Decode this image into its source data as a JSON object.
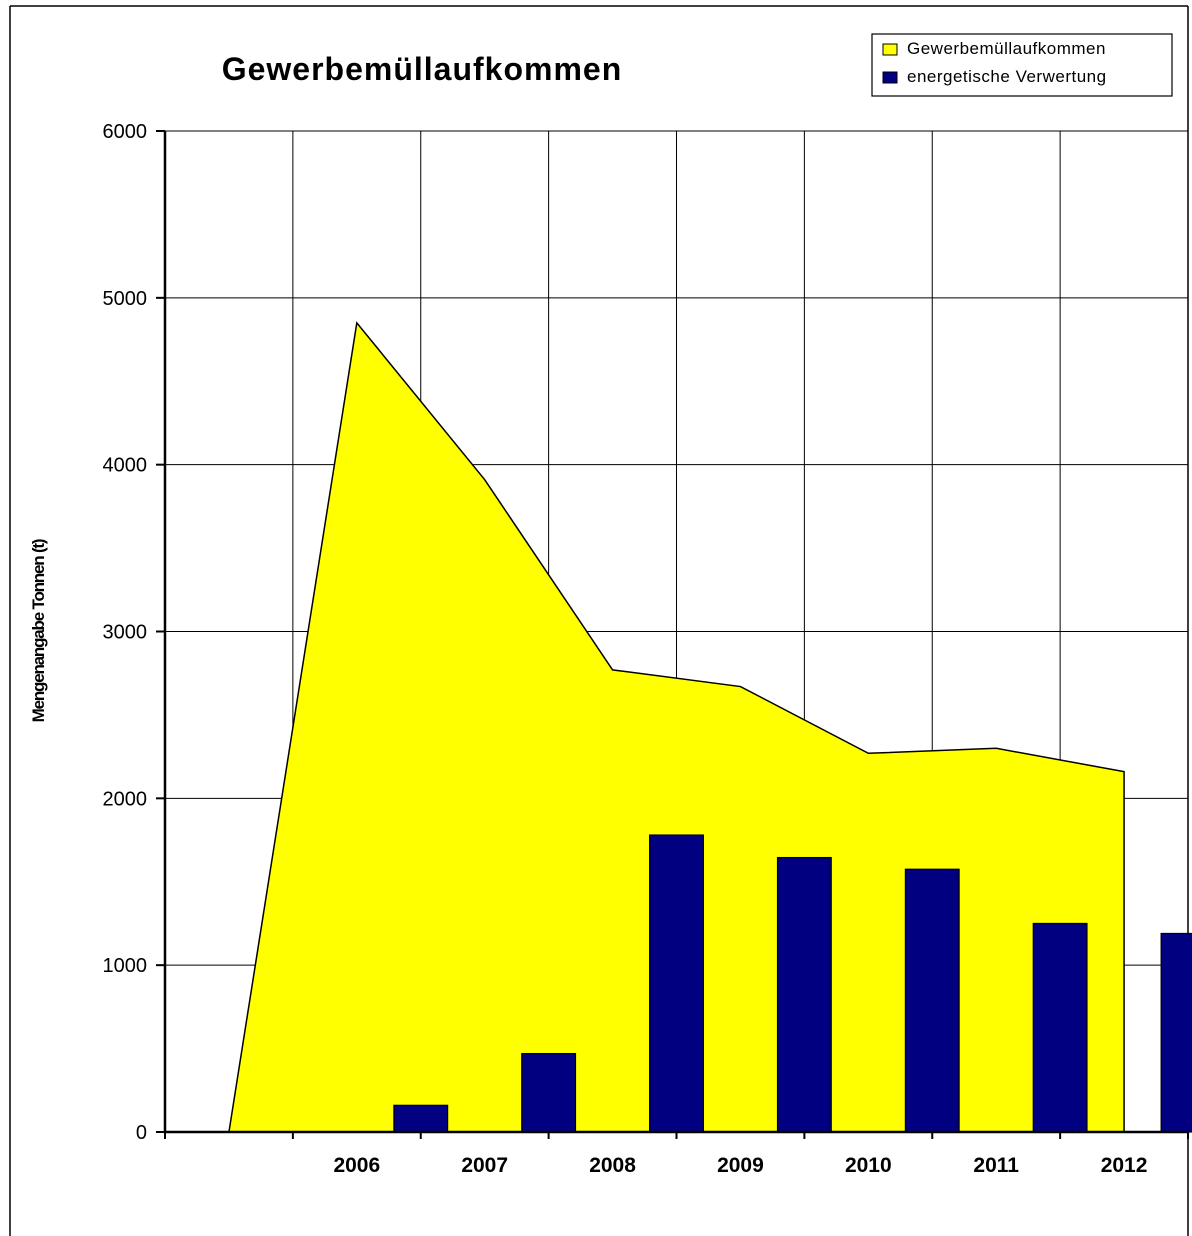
{
  "chart_data": {
    "type": "area+bar",
    "title": "Gewerbemüllaufkommen",
    "ylabel": "Mengenangabe Tonnen (t)",
    "xlabel": "",
    "ylim": [
      0,
      6000
    ],
    "yticks": [
      "0",
      "1000",
      "2000",
      "3000",
      "4000",
      "5000",
      "6000"
    ],
    "categories": [
      "",
      "2006",
      "2007",
      "2008",
      "2009",
      "2010",
      "2011",
      "2012"
    ],
    "grid": true,
    "legend_position": "top-right",
    "series": [
      {
        "name": "Gewerbemüllaufkommen",
        "type": "area",
        "color": "#FFFF00",
        "points": [
          {
            "x": "2005",
            "y": 0
          },
          {
            "x": "2006",
            "y": 4850
          },
          {
            "x": "2007",
            "y": 3910
          },
          {
            "x": "2008",
            "y": 2770
          },
          {
            "x": "2009",
            "y": 2670
          },
          {
            "x": "2010",
            "y": 2270
          },
          {
            "x": "2011",
            "y": 2300
          },
          {
            "x": "2012",
            "y": 2160
          }
        ]
      },
      {
        "name": "energetische Verwertung",
        "type": "bar",
        "color": "#000080",
        "points": [
          {
            "x": "2006",
            "y": 160
          },
          {
            "x": "2007",
            "y": 470
          },
          {
            "x": "2008",
            "y": 1780
          },
          {
            "x": "2009",
            "y": 1645
          },
          {
            "x": "2010",
            "y": 1575
          },
          {
            "x": "2011",
            "y": 1250
          },
          {
            "x": "2012",
            "y": 1190
          }
        ]
      }
    ]
  }
}
